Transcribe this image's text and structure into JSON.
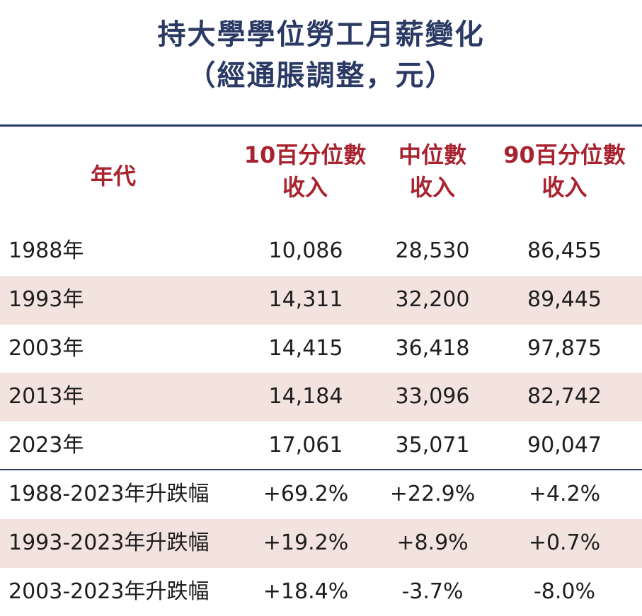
{
  "title": {
    "line1": "持大學學位勞工月薪變化",
    "line2": "（經通脹調整，元）"
  },
  "header": {
    "year": "年代",
    "col1_line1": "10百分位數",
    "col1_line2": "收入",
    "col2_line1": "中位數",
    "col2_line2": "收入",
    "col3_line1": "90百分位數",
    "col3_line2": "收入"
  },
  "colors": {
    "title": "#2b3a64",
    "header": "#a8232f",
    "shade": "#f3e3df",
    "rule": "#2b3a64"
  },
  "chart_data": {
    "type": "table",
    "title": "持大學學位勞工月薪變化（經通脹調整，元）",
    "columns": [
      "年代",
      "10百分位數收入",
      "中位數收入",
      "90百分位數收入"
    ],
    "rows": [
      [
        "1988年",
        "10,086",
        "28,530",
        "86,455"
      ],
      [
        "1993年",
        "14,311",
        "32,200",
        "89,445"
      ],
      [
        "2003年",
        "14,415",
        "36,418",
        "97,875"
      ],
      [
        "2013年",
        "14,184",
        "33,096",
        "82,742"
      ],
      [
        "2023年",
        "17,061",
        "35,071",
        "90,047"
      ]
    ],
    "change_rows": [
      [
        "1988-2023年升跌幅",
        "+69.2%",
        "+22.9%",
        "+4.2%"
      ],
      [
        "1993-2023年升跌幅",
        "+19.2%",
        "+8.9%",
        "+0.7%"
      ],
      [
        "2003-2023年升跌幅",
        "+18.4%",
        "-3.7%",
        "-8.0%"
      ]
    ]
  }
}
